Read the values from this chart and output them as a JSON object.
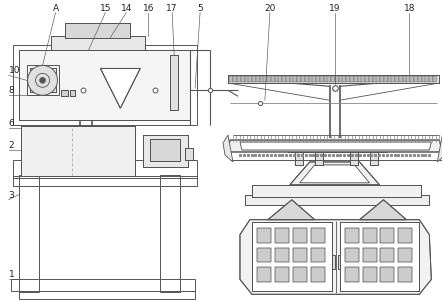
{
  "bg_color": "#ffffff",
  "line_color": "#555555",
  "label_color": "#222222",
  "lw": 0.7,
  "fig_w": 4.43,
  "fig_h": 3.01
}
